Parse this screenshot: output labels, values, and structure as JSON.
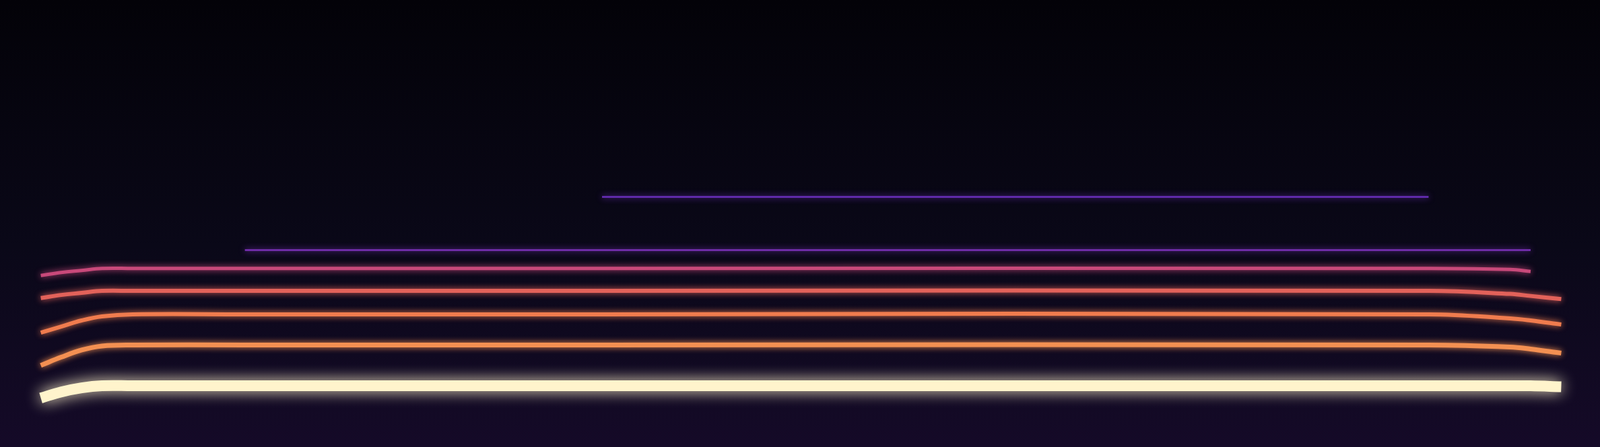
{
  "chart_data": {
    "type": "line",
    "x": [
      40,
      60,
      80,
      100,
      130,
      240,
      590,
      1400,
      1480,
      1500,
      1530
    ],
    "series": [
      {
        "color": "#fff4cc",
        "values": [
          48,
          54,
          58,
          60,
          60,
          60,
          60,
          60,
          60,
          60,
          59
        ]
      },
      {
        "color": "#f39052",
        "values": [
          80,
          88,
          95,
          99,
          100,
          100,
          100,
          100,
          98,
          96,
          92
        ]
      },
      {
        "color": "#f07c4e",
        "values": [
          112,
          118,
          124,
          128,
          130,
          130,
          130,
          130,
          126,
          124,
          120
        ]
      },
      {
        "color": "#e2625a",
        "values": [
          146,
          149,
          151,
          153,
          153,
          153,
          153,
          153,
          150,
          148,
          145
        ]
      },
      {
        "color": "#c8497a",
        "values": [
          168,
          171,
          173,
          175,
          175,
          175,
          175,
          175,
          174,
          172,
          null
        ]
      },
      {
        "color": "#6e2ca6",
        "values": [
          null,
          null,
          null,
          null,
          null,
          193,
          193,
          193,
          193,
          193,
          null
        ]
      },
      {
        "color": "#5f2aa8",
        "values": [
          null,
          null,
          null,
          null,
          null,
          null,
          245,
          245,
          null,
          null,
          null
        ]
      }
    ],
    "xlim": [
      0,
      1568
    ],
    "ylim": [
      0,
      438
    ],
    "grid": false,
    "tick_labels": false
  }
}
